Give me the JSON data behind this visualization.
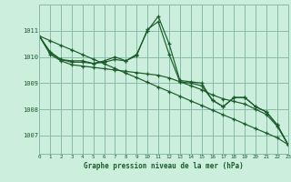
{
  "background_color": "#cceedd",
  "grid_color": "#88bbaa",
  "line_color": "#1a5c28",
  "title": "Graphe pression niveau de la mer (hPa)",
  "xlabel_ticks": [
    0,
    1,
    2,
    3,
    4,
    5,
    6,
    7,
    8,
    9,
    10,
    11,
    12,
    13,
    14,
    15,
    16,
    17,
    18,
    19,
    20,
    21,
    22,
    23
  ],
  "yticks": [
    1007,
    1008,
    1009,
    1010,
    1011
  ],
  "ylim": [
    1006.3,
    1012.0
  ],
  "xlim": [
    0,
    23
  ],
  "lines": [
    {
      "x": [
        0,
        1,
        2,
        3,
        4,
        5,
        6,
        7,
        8,
        9,
        10,
        11,
        12,
        13,
        14,
        15,
        16,
        17,
        18,
        19,
        20,
        21,
        22,
        23
      ],
      "y": [
        1010.8,
        1010.2,
        1009.9,
        1009.85,
        1009.85,
        1009.75,
        1009.85,
        1010.0,
        1009.85,
        1010.1,
        1011.0,
        1011.55,
        1010.5,
        1009.1,
        1009.05,
        1009.0,
        1008.35,
        1008.1,
        1008.45,
        1008.45,
        1008.1,
        1007.9,
        1007.4,
        1006.65
      ]
    },
    {
      "x": [
        0,
        1,
        2,
        3,
        4,
        5,
        6,
        7,
        8,
        9,
        10,
        11,
        12,
        13,
        14,
        15,
        16,
        17,
        18,
        19,
        20,
        21,
        22,
        23
      ],
      "y": [
        1010.8,
        1010.15,
        1009.9,
        1009.8,
        1009.8,
        1009.75,
        1009.8,
        1009.9,
        1009.85,
        1010.05,
        1011.05,
        1011.35,
        1010.1,
        1009.05,
        1009.0,
        1008.9,
        1008.35,
        1008.1,
        1008.45,
        1008.45,
        1008.1,
        1007.9,
        1007.4,
        1006.65
      ]
    },
    {
      "x": [
        0,
        1,
        2,
        3,
        4,
        5,
        6,
        7,
        8,
        9,
        10,
        11,
        12,
        13,
        14,
        15,
        16,
        17,
        18,
        19,
        20,
        21,
        22,
        23
      ],
      "y": [
        1010.8,
        1010.1,
        1009.85,
        1009.7,
        1009.65,
        1009.6,
        1009.55,
        1009.5,
        1009.45,
        1009.4,
        1009.35,
        1009.3,
        1009.2,
        1009.05,
        1008.9,
        1008.75,
        1008.55,
        1008.4,
        1008.3,
        1008.2,
        1008.0,
        1007.8,
        1007.35,
        1006.65
      ]
    },
    {
      "x": [
        0,
        1,
        2,
        3,
        4,
        5,
        6,
        7,
        8,
        9,
        10,
        11,
        12,
        13,
        14,
        15,
        16,
        17,
        18,
        19,
        20,
        21,
        22,
        23
      ],
      "y": [
        1010.8,
        1010.62,
        1010.44,
        1010.27,
        1010.09,
        1009.91,
        1009.74,
        1009.56,
        1009.38,
        1009.21,
        1009.03,
        1008.85,
        1008.68,
        1008.5,
        1008.32,
        1008.15,
        1007.97,
        1007.79,
        1007.62,
        1007.44,
        1007.26,
        1007.09,
        1006.91,
        1006.65
      ]
    }
  ]
}
